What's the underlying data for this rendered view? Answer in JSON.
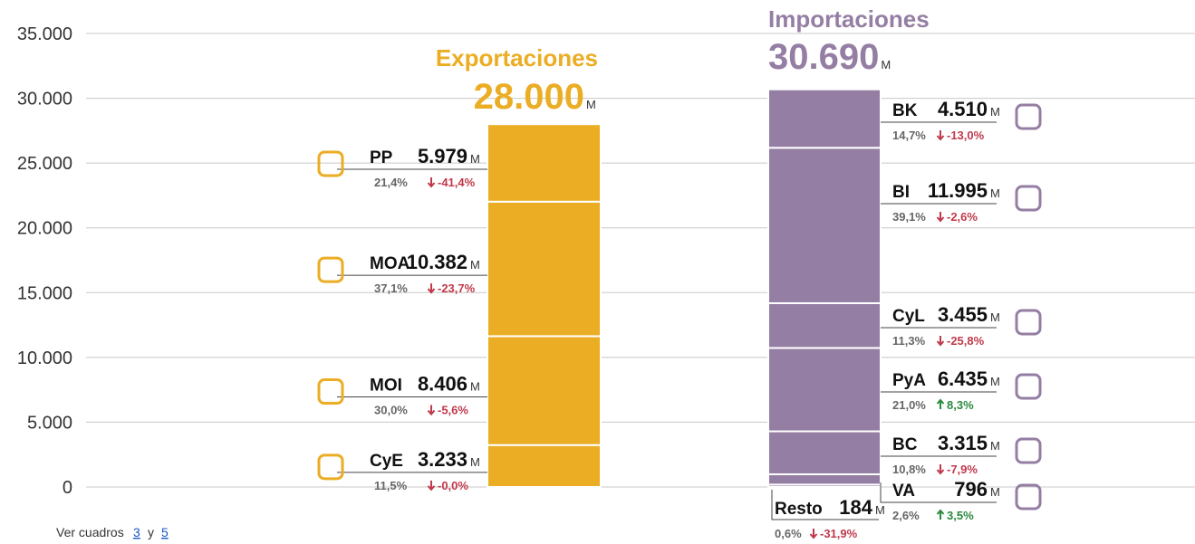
{
  "chart_data": {
    "type": "stacked-bar",
    "unit": "M",
    "grid": true,
    "ylim": [
      0,
      35000
    ],
    "yticks": [
      0,
      {
        "value": 5000,
        "label": "5.000"
      },
      {
        "value": 10000,
        "label": "10.000"
      },
      {
        "value": 15000,
        "label": "15.000"
      },
      {
        "value": 20000,
        "label": "20.000"
      },
      {
        "value": 25000,
        "label": "25.000"
      },
      {
        "value": 30000,
        "label": "30.000"
      },
      {
        "value": 35000,
        "label": "35.000"
      }
    ],
    "bars": [
      {
        "name": "Exportaciones",
        "color": "#ebad24",
        "total": {
          "value": 28000,
          "label": "28.000"
        },
        "categories": [
          "CyE",
          "MOI",
          "MOA",
          "PP"
        ],
        "values": [
          3233,
          8406,
          10382,
          5979
        ],
        "value_labels": [
          "3.233",
          "8.406",
          "10.382",
          "5.979"
        ],
        "shares": [
          "11,5%",
          "30,0%",
          "37,1%",
          "21,4%"
        ],
        "changes": [
          "-0,0%",
          "-5,6%",
          "-23,7%",
          "-41,4%"
        ]
      },
      {
        "name": "Importaciones",
        "color": "#957ea3",
        "total": {
          "value": 30690,
          "label": "30.690"
        },
        "categories": [
          "Resto",
          "VA",
          "BC",
          "PyA",
          "CyL",
          "BI",
          "BK"
        ],
        "values": [
          184,
          796,
          3315,
          6435,
          3455,
          11995,
          4510
        ],
        "value_labels": [
          "184",
          "796",
          "3.315",
          "6.435",
          "3.455",
          "11.995",
          "4.510"
        ],
        "shares": [
          "0,6%",
          "2,6%",
          "10,8%",
          "21,0%",
          "11,3%",
          "39,1%",
          "14,7%"
        ],
        "changes": [
          "-31,9%",
          "3,5%",
          "-7,9%",
          "8,3%",
          "-25,8%",
          "-2,6%",
          "-13,0%"
        ]
      }
    ]
  },
  "footnote": {
    "text": "Ver cuadros",
    "links": [
      "3",
      "5"
    ],
    "joiner": "y"
  }
}
